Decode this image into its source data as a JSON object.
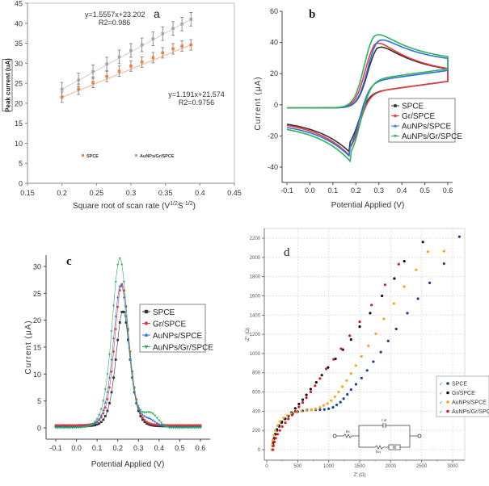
{
  "chart_data": [
    {
      "id": "a",
      "type": "scatter",
      "panel_label": "a",
      "xlabel": "Square root of scan rate (V1/2S-1/2)",
      "xlabel_main": "Square root of scan rate (V",
      "xlabel_sup1": "1/2",
      "xlabel_mid": "S",
      "xlabel_sup2": "-1/2",
      "xlabel_end": ")",
      "ylabel": "Peak current (uA)",
      "xlim": [
        0.15,
        0.45
      ],
      "ylim": [
        0,
        45
      ],
      "xticks": [
        "0.15",
        "0.2",
        "0.25",
        "0.3",
        "0.35",
        "0.4",
        "0.45"
      ],
      "yticks": [
        "0",
        "5",
        "10",
        "15",
        "20",
        "25",
        "30",
        "35",
        "40",
        "45"
      ],
      "x": [
        0.2,
        0.224,
        0.245,
        0.265,
        0.283,
        0.3,
        0.316,
        0.332,
        0.346,
        0.361,
        0.374,
        0.387
      ],
      "series": [
        {
          "name": "SPCE",
          "color": "#f07f3c",
          "values": [
            21.5,
            23.5,
            25.2,
            26.7,
            28.0,
            29.3,
            30.3,
            31.4,
            32.6,
            33.6,
            34.3,
            34.6
          ],
          "error": 1.3
        },
        {
          "name": "AuNPs/Gr/SPCE",
          "color": "#a6a6a6",
          "values": [
            23.5,
            25.8,
            27.9,
            29.8,
            31.6,
            33.2,
            34.6,
            36.1,
            37.4,
            38.7,
            39.8,
            41.0
          ],
          "error": 1.7
        }
      ],
      "annotations": [
        {
          "text1": "y=1.5557x+23.202",
          "text2": "R2=0.986"
        },
        {
          "text1": "y=1.191x+21.574",
          "text2": "R2=0.9756"
        }
      ],
      "legend": "bottom-center",
      "grid": false
    },
    {
      "id": "b",
      "type": "line",
      "panel_label": "b",
      "xlabel": "Potential Applied (V)",
      "ylabel": "Current (μA)",
      "xlim": [
        -0.1,
        0.6
      ],
      "ylim": [
        -50,
        60
      ],
      "xticks": [
        "-0.1",
        "0.0",
        "0.1",
        "0.2",
        "0.3",
        "0.4",
        "0.5",
        "0.6"
      ],
      "yticks": [
        "-40",
        "-20",
        "0",
        "20",
        "40",
        "60"
      ],
      "series": [
        {
          "name": "SPCE",
          "color": "#333333",
          "marker": "square",
          "anodic_peak": [
            0.29,
            42
          ],
          "cathodic_peak": [
            0.17,
            -30
          ],
          "end_forward": 20,
          "start_reverse": -9
        },
        {
          "name": "Gr/SPCE",
          "color": "#e8383d",
          "marker": "circle",
          "anodic_peak": [
            0.28,
            45
          ],
          "cathodic_peak": [
            0.175,
            -33
          ],
          "end_forward": 20,
          "start_reverse": -9.5
        },
        {
          "name": "AuNPs/SPCE",
          "color": "#2f6fdc",
          "marker": "triangle-up",
          "anodic_peak": [
            0.29,
            46.5
          ],
          "cathodic_peak": [
            0.175,
            -33.5
          ],
          "end_forward": 27,
          "start_reverse": -11
        },
        {
          "name": "AuNPs/Gr/SPCE",
          "color": "#2fb05a",
          "marker": "triangle-down",
          "anodic_peak": [
            0.275,
            50.5
          ],
          "cathodic_peak": [
            0.18,
            -37
          ],
          "end_forward": 28,
          "start_reverse": -12
        }
      ],
      "legend": "center-right",
      "grid": false
    },
    {
      "id": "c",
      "type": "line",
      "panel_label": "c",
      "xlabel": "Potential Applied (V)",
      "ylabel": "Current (μA)",
      "xlim": [
        -0.15,
        0.65
      ],
      "ylim": [
        -2,
        32
      ],
      "xticks": [
        "-0.1",
        "0.0",
        "0.1",
        "0.2",
        "0.3",
        "0.4",
        "0.5",
        "0.6"
      ],
      "yticks": [
        "0",
        "5",
        "10",
        "15",
        "20",
        "25",
        "30"
      ],
      "series": [
        {
          "name": "SPCE",
          "color": "#333333",
          "marker": "square",
          "peak_x": 0.225,
          "peak": 21.5,
          "baseline": 0.3
        },
        {
          "name": "Gr/SPCE",
          "color": "#e8383d",
          "marker": "circle",
          "peak_x": 0.22,
          "peak": 26.2,
          "baseline": 0.5
        },
        {
          "name": "AuNPs/SPCE",
          "color": "#2f6fdc",
          "marker": "triangle-up",
          "peak_x": 0.215,
          "peak": 26.4,
          "baseline": 0.2
        },
        {
          "name": "AuNPs/Gr/SPCE",
          "color": "#2fb05a",
          "marker": "triangle-down",
          "peak_x": 0.21,
          "peak": 31.5,
          "baseline": 0.0
        }
      ],
      "legend": "top-right",
      "grid": false
    },
    {
      "id": "d",
      "type": "scatter",
      "panel_label": "d",
      "xlabel": "Z' (Ω)",
      "ylabel": "-Z'' (Ω)",
      "xlim": [
        -100,
        3250
      ],
      "ylim": [
        -150,
        2300
      ],
      "xticks": [
        "0",
        "500",
        "1000",
        "1500",
        "2000",
        "2500",
        "3000"
      ],
      "yticks": [
        "0",
        "200",
        "400",
        "600",
        "800",
        "1000",
        "1200",
        "1400",
        "1600",
        "1800",
        "2000",
        "2200"
      ],
      "series": [
        {
          "name": "SPCE",
          "color": "#1f3f8f",
          "points": [
            [
              90,
              0
            ],
            [
              95,
              40
            ],
            [
              105,
              80
            ],
            [
              120,
              120
            ],
            [
              140,
              160
            ],
            [
              165,
              200
            ],
            [
              200,
              240
            ],
            [
              240,
              280
            ],
            [
              290,
              320
            ],
            [
              350,
              350
            ],
            [
              420,
              375
            ],
            [
              500,
              395
            ],
            [
              580,
              405
            ],
            [
              650,
              412
            ],
            [
              720,
              415
            ],
            [
              790,
              415
            ],
            [
              860,
              416
            ],
            [
              930,
              418
            ],
            [
              1000,
              425
            ],
            [
              1070,
              440
            ],
            [
              1130,
              465
            ],
            [
              1190,
              495
            ],
            [
              1240,
              530
            ],
            [
              1300,
              575
            ],
            [
              1360,
              625
            ],
            [
              1440,
              680
            ],
            [
              1530,
              745
            ],
            [
              1620,
              825
            ],
            [
              1720,
              915
            ],
            [
              1840,
              1015
            ],
            [
              1960,
              1130
            ],
            [
              2090,
              1255
            ],
            [
              2270,
              1420
            ],
            [
              2440,
              1570
            ],
            [
              2630,
              1735
            ],
            [
              2860,
              1935
            ],
            [
              3110,
              2215
            ]
          ]
        },
        {
          "name": "Gr/SPCE",
          "color": "#111111",
          "points": [
            [
              90,
              0
            ],
            [
              100,
              60
            ],
            [
              115,
              110
            ],
            [
              135,
              160
            ],
            [
              165,
              210
            ],
            [
              200,
              250
            ],
            [
              245,
              290
            ],
            [
              300,
              320
            ],
            [
              350,
              350
            ],
            [
              400,
              385
            ],
            [
              460,
              430
            ],
            [
              520,
              475
            ],
            [
              580,
              520
            ],
            [
              640,
              570
            ],
            [
              710,
              630
            ],
            [
              800,
              700
            ],
            [
              890,
              775
            ],
            [
              990,
              855
            ],
            [
              1110,
              945
            ],
            [
              1230,
              1040
            ],
            [
              1360,
              1145
            ],
            [
              1500,
              1280
            ],
            [
              1670,
              1420
            ],
            [
              1860,
              1600
            ],
            [
              2060,
              1780
            ],
            [
              2220,
              1960
            ],
            [
              2520,
              2160
            ]
          ]
        },
        {
          "name": "AuNPs/SPCE",
          "color": "#f4a81d",
          "points": [
            [
              85,
              0
            ],
            [
              90,
              50
            ],
            [
              100,
              100
            ],
            [
              115,
              150
            ],
            [
              140,
              200
            ],
            [
              175,
              250
            ],
            [
              215,
              295
            ],
            [
              270,
              330
            ],
            [
              330,
              355
            ],
            [
              400,
              375
            ],
            [
              480,
              390
            ],
            [
              560,
              400
            ],
            [
              640,
              408
            ],
            [
              720,
              415
            ],
            [
              790,
              425
            ],
            [
              860,
              440
            ],
            [
              920,
              460
            ],
            [
              980,
              480
            ],
            [
              1040,
              510
            ],
            [
              1100,
              550
            ],
            [
              1160,
              600
            ],
            [
              1220,
              655
            ],
            [
              1290,
              720
            ],
            [
              1360,
              790
            ],
            [
              1440,
              875
            ],
            [
              1530,
              970
            ],
            [
              1640,
              1080
            ],
            [
              1760,
              1205
            ],
            [
              1890,
              1360
            ],
            [
              2050,
              1520
            ],
            [
              2220,
              1695
            ],
            [
              2410,
              1870
            ],
            [
              2600,
              2060
            ],
            [
              2860,
              2065
            ]
          ]
        },
        {
          "name": "AuNPs/Gr/SPCE",
          "color": "#d11f24",
          "points": [
            [
              100,
              0
            ],
            [
              110,
              40
            ],
            [
              125,
              80
            ],
            [
              145,
              120
            ],
            [
              175,
              160
            ],
            [
              210,
              200
            ],
            [
              250,
              240
            ],
            [
              300,
              280
            ],
            [
              350,
              320
            ],
            [
              410,
              360
            ],
            [
              460,
              400
            ],
            [
              520,
              445
            ],
            [
              580,
              490
            ],
            [
              640,
              540
            ],
            [
              710,
              600
            ],
            [
              780,
              665
            ],
            [
              860,
              740
            ],
            [
              960,
              840
            ],
            [
              1080,
              940
            ],
            [
              1200,
              1050
            ],
            [
              1340,
              1185
            ],
            [
              1500,
              1330
            ],
            [
              1690,
              1505
            ],
            [
              1910,
              1715
            ],
            [
              2130,
              1930
            ]
          ]
        }
      ],
      "inset": {
        "Rs": "Rs",
        "Cdl": "Cdl",
        "Rct": "Rct",
        "W": "W"
      },
      "legend": "center-right",
      "grid": true
    }
  ]
}
